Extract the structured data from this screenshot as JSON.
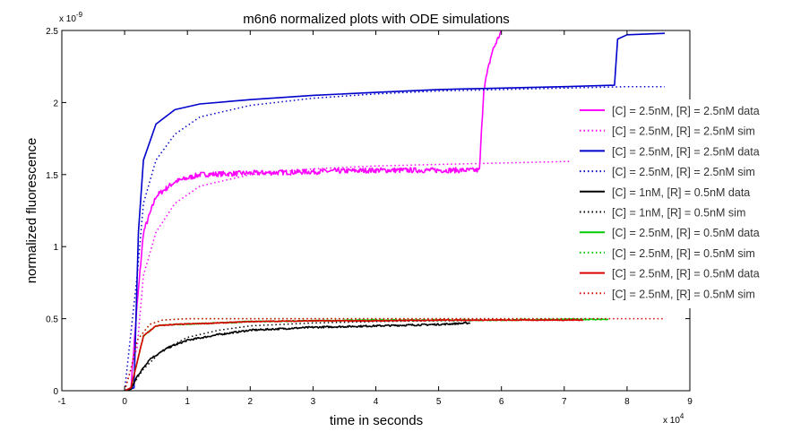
{
  "chart_data": {
    "type": "line",
    "title": "m6n6 normalized plots with ODE simulations",
    "xlabel": "time in seconds",
    "ylabel": "normalized fluorescence",
    "x_exponent_label": "x 10",
    "x_exponent_power": "4",
    "y_exponent_label": "x 10",
    "y_exponent_power": "-9",
    "xlim": [
      -1,
      9
    ],
    "ylim": [
      0,
      2.5
    ],
    "x_units": "x 10^4 seconds",
    "y_units": "x 10^-9",
    "xticks": [
      -1,
      0,
      1,
      2,
      3,
      4,
      5,
      6,
      7,
      8,
      9
    ],
    "xtick_labels": [
      "-1",
      "0",
      "1",
      "2",
      "3",
      "4",
      "5",
      "6",
      "7",
      "8",
      "9"
    ],
    "yticks": [
      0,
      0.5,
      1,
      1.5,
      2,
      2.5
    ],
    "ytick_labels": [
      "0",
      "0.5",
      "1",
      "1.5",
      "2",
      "2.5"
    ],
    "grid": false,
    "legend_position": "right",
    "series": [
      {
        "name": "[C] = 2.5nM, [R] = 2.5nM data",
        "color": "#ff00ff",
        "style": "solid",
        "noise": 0.018,
        "points": [
          [
            0,
            0
          ],
          [
            0.1,
            0.02
          ],
          [
            0.2,
            0.6
          ],
          [
            0.3,
            1.1
          ],
          [
            0.5,
            1.35
          ],
          [
            0.8,
            1.45
          ],
          [
            1.2,
            1.5
          ],
          [
            2,
            1.51
          ],
          [
            3,
            1.52
          ],
          [
            4,
            1.53
          ],
          [
            5,
            1.53
          ],
          [
            5.65,
            1.53
          ],
          [
            5.72,
            2.1
          ],
          [
            5.85,
            2.35
          ],
          [
            6,
            2.5
          ]
        ]
      },
      {
        "name": "[C] = 2.5nM, [R] = 2.5nM sim",
        "color": "#ff00ff",
        "style": "dotted",
        "points": [
          [
            0,
            0
          ],
          [
            0.2,
            0.3
          ],
          [
            0.3,
            0.8
          ],
          [
            0.5,
            1.1
          ],
          [
            0.8,
            1.3
          ],
          [
            1.2,
            1.42
          ],
          [
            2,
            1.5
          ],
          [
            3,
            1.54
          ],
          [
            4,
            1.56
          ],
          [
            5,
            1.57
          ],
          [
            6,
            1.58
          ],
          [
            7,
            1.59
          ],
          [
            7.2,
            1.59
          ]
        ]
      },
      {
        "name": "[C] = 2.5nM, [R] = 2.5nM data",
        "color": "#0000cc",
        "style": "solid",
        "points": [
          [
            0,
            0
          ],
          [
            0.15,
            0.02
          ],
          [
            0.22,
            1.1
          ],
          [
            0.3,
            1.6
          ],
          [
            0.5,
            1.85
          ],
          [
            0.8,
            1.95
          ],
          [
            1.2,
            1.99
          ],
          [
            2,
            2.02
          ],
          [
            3,
            2.05
          ],
          [
            4,
            2.07
          ],
          [
            5,
            2.09
          ],
          [
            6,
            2.1
          ],
          [
            7,
            2.11
          ],
          [
            7.8,
            2.12
          ],
          [
            7.85,
            2.44
          ],
          [
            8,
            2.47
          ],
          [
            8.6,
            2.48
          ]
        ]
      },
      {
        "name": "[C] = 2.5nM, [R] = 2.5nM sim",
        "color": "#0000cc",
        "style": "dotted",
        "points": [
          [
            0,
            0
          ],
          [
            0.2,
            0.8
          ],
          [
            0.3,
            1.3
          ],
          [
            0.5,
            1.6
          ],
          [
            0.8,
            1.78
          ],
          [
            1.2,
            1.9
          ],
          [
            2,
            1.98
          ],
          [
            3,
            2.03
          ],
          [
            4,
            2.06
          ],
          [
            5,
            2.08
          ],
          [
            6,
            2.09
          ],
          [
            7,
            2.1
          ],
          [
            8,
            2.11
          ],
          [
            8.6,
            2.11
          ]
        ]
      },
      {
        "name": "[C] = 1nM, [R] = 0.5nM data",
        "color": "#000000",
        "style": "solid",
        "noise": 0.006,
        "points": [
          [
            0,
            0
          ],
          [
            0.1,
            0.01
          ],
          [
            0.2,
            0.1
          ],
          [
            0.4,
            0.22
          ],
          [
            0.7,
            0.3
          ],
          [
            1,
            0.35
          ],
          [
            1.5,
            0.39
          ],
          [
            2,
            0.42
          ],
          [
            3,
            0.44
          ],
          [
            4,
            0.45
          ],
          [
            5,
            0.46
          ],
          [
            5.5,
            0.47
          ]
        ]
      },
      {
        "name": "[C] = 1nM, [R] = 0.5nM sim",
        "color": "#000000",
        "style": "dotted",
        "points": [
          [
            0,
            0
          ],
          [
            0.1,
            0.02
          ],
          [
            0.3,
            0.15
          ],
          [
            0.6,
            0.28
          ],
          [
            1,
            0.37
          ],
          [
            1.5,
            0.42
          ],
          [
            2,
            0.45
          ],
          [
            3,
            0.47
          ],
          [
            4,
            0.48
          ],
          [
            5,
            0.485
          ],
          [
            5.5,
            0.485
          ]
        ]
      },
      {
        "name": "[C] = 2.5nM, [R] = 0.5nM data",
        "color": "#00cc00",
        "style": "solid",
        "noise": 0.004,
        "points": [
          [
            0,
            0
          ],
          [
            0.1,
            0.02
          ],
          [
            0.2,
            0.2
          ],
          [
            0.3,
            0.38
          ],
          [
            0.5,
            0.45
          ],
          [
            0.8,
            0.46
          ],
          [
            1.5,
            0.47
          ],
          [
            2,
            0.48
          ],
          [
            3,
            0.485
          ],
          [
            4,
            0.49
          ],
          [
            5,
            0.49
          ],
          [
            6,
            0.49
          ],
          [
            7,
            0.495
          ],
          [
            7.7,
            0.495
          ]
        ]
      },
      {
        "name": "[C] = 2.5nM, [R] = 0.5nM sim",
        "color": "#00cc00",
        "style": "dotted",
        "points": [
          [
            0,
            0
          ],
          [
            0.1,
            0.15
          ],
          [
            0.2,
            0.35
          ],
          [
            0.4,
            0.46
          ],
          [
            0.6,
            0.49
          ],
          [
            1,
            0.5
          ],
          [
            2,
            0.5
          ],
          [
            4,
            0.5
          ],
          [
            6,
            0.5
          ],
          [
            7.7,
            0.5
          ]
        ]
      },
      {
        "name": "[C] = 2.5nM, [R] = 0.5nM data",
        "color": "#dd0000",
        "style": "solid",
        "noise": 0.003,
        "points": [
          [
            0,
            0
          ],
          [
            0.1,
            0.02
          ],
          [
            0.2,
            0.2
          ],
          [
            0.3,
            0.38
          ],
          [
            0.5,
            0.45
          ],
          [
            0.8,
            0.46
          ],
          [
            1.5,
            0.47
          ],
          [
            2,
            0.48
          ],
          [
            3,
            0.485
          ],
          [
            4,
            0.485
          ],
          [
            5,
            0.49
          ],
          [
            6,
            0.49
          ],
          [
            7,
            0.49
          ],
          [
            7.3,
            0.49
          ]
        ]
      },
      {
        "name": "[C] = 2.5nM, [R] = 0.5nM sim",
        "color": "#dd0000",
        "style": "dotted",
        "points": [
          [
            0,
            0
          ],
          [
            0.1,
            0.15
          ],
          [
            0.2,
            0.35
          ],
          [
            0.4,
            0.46
          ],
          [
            0.6,
            0.49
          ],
          [
            1,
            0.5
          ],
          [
            2,
            0.5
          ],
          [
            4,
            0.5
          ],
          [
            6,
            0.5
          ],
          [
            8,
            0.5
          ],
          [
            8.6,
            0.5
          ]
        ]
      }
    ]
  }
}
